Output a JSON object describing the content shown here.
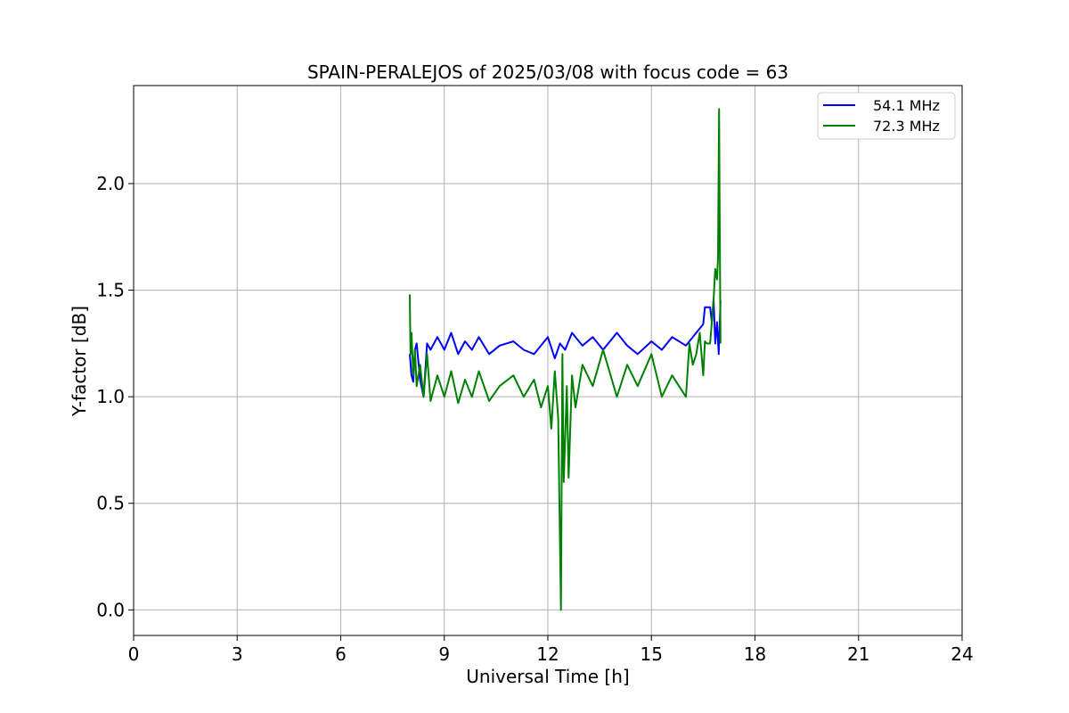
{
  "chart_data": {
    "type": "line",
    "title": "SPAIN-PERALEJOS of 2025/03/08 with focus code = 63",
    "xlabel": "Universal Time [h]",
    "ylabel": "Y-factor [dB]",
    "xlim": [
      0,
      24
    ],
    "ylim": [
      -0.12,
      2.46
    ],
    "xticks": [
      "0",
      "3",
      "6",
      "9",
      "12",
      "15",
      "18",
      "21",
      "24"
    ],
    "yticks": [
      "0.0",
      "0.5",
      "1.0",
      "1.5",
      "2.0"
    ],
    "grid": true,
    "legend_position": "top-right",
    "series": [
      {
        "name": "54.1 MHz",
        "color": "#0000ff",
        "x": [
          8.0,
          8.05,
          8.1,
          8.15,
          8.2,
          8.3,
          8.4,
          8.5,
          8.6,
          8.8,
          9.0,
          9.2,
          9.4,
          9.6,
          9.8,
          10.0,
          10.3,
          10.6,
          11.0,
          11.3,
          11.6,
          12.0,
          12.2,
          12.35,
          12.5,
          12.7,
          13.0,
          13.3,
          13.6,
          14.0,
          14.3,
          14.6,
          15.0,
          15.3,
          15.6,
          16.0,
          16.3,
          16.5,
          16.55,
          16.7,
          16.75,
          16.8,
          16.85,
          16.9,
          16.95,
          17.0
        ],
        "y": [
          1.2,
          1.1,
          1.07,
          1.22,
          1.25,
          1.08,
          1.0,
          1.25,
          1.22,
          1.28,
          1.22,
          1.3,
          1.2,
          1.26,
          1.22,
          1.28,
          1.2,
          1.24,
          1.26,
          1.22,
          1.2,
          1.28,
          1.18,
          1.25,
          1.22,
          1.3,
          1.24,
          1.28,
          1.22,
          1.3,
          1.24,
          1.2,
          1.26,
          1.22,
          1.28,
          1.24,
          1.3,
          1.34,
          1.42,
          1.42,
          1.35,
          1.46,
          1.25,
          1.35,
          1.2,
          1.45
        ]
      },
      {
        "name": "72.3 MHz",
        "color": "#008000",
        "x": [
          8.0,
          8.02,
          8.05,
          8.1,
          8.15,
          8.2,
          8.3,
          8.4,
          8.5,
          8.6,
          8.8,
          9.0,
          9.2,
          9.4,
          9.6,
          9.8,
          10.0,
          10.3,
          10.6,
          11.0,
          11.3,
          11.6,
          11.8,
          12.0,
          12.1,
          12.2,
          12.3,
          12.38,
          12.42,
          12.46,
          12.55,
          12.6,
          12.7,
          12.8,
          13.0,
          13.3,
          13.6,
          14.0,
          14.3,
          14.6,
          15.0,
          15.3,
          15.6,
          16.0,
          16.1,
          16.2,
          16.3,
          16.4,
          16.5,
          16.55,
          16.6,
          16.7,
          16.8,
          16.85,
          16.9,
          16.93,
          16.96,
          16.98,
          17.0
        ],
        "y": [
          1.48,
          1.2,
          1.3,
          1.1,
          1.22,
          1.05,
          1.15,
          1.0,
          1.2,
          0.98,
          1.1,
          1.0,
          1.12,
          0.97,
          1.08,
          1.0,
          1.12,
          0.98,
          1.05,
          1.1,
          1.0,
          1.08,
          0.95,
          1.05,
          0.85,
          1.12,
          0.9,
          0.0,
          1.2,
          0.6,
          1.05,
          0.62,
          1.1,
          0.95,
          1.15,
          1.05,
          1.22,
          1.0,
          1.15,
          1.05,
          1.2,
          1.0,
          1.1,
          1.0,
          1.25,
          1.15,
          1.2,
          1.3,
          1.1,
          1.26,
          1.25,
          1.25,
          1.45,
          1.6,
          1.55,
          1.65,
          2.35,
          1.75,
          1.25
        ]
      }
    ]
  }
}
